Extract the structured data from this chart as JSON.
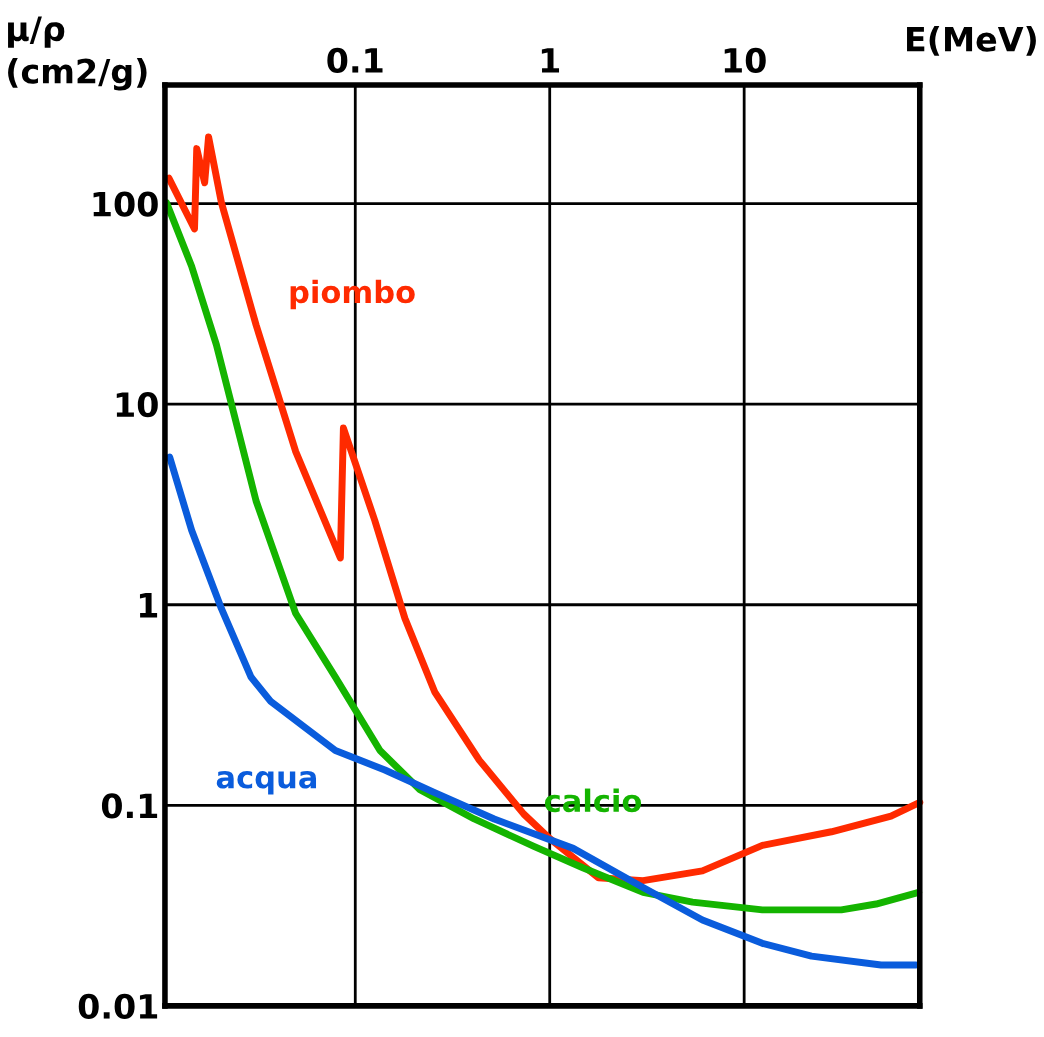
{
  "chart_data": {
    "type": "line",
    "xlabel": "E(MeV)",
    "ylabel": "μ/ρ\n(cm2/g)",
    "log": "xy",
    "grid": true,
    "marker": "none",
    "line_style": "solid",
    "xlim": [
      0.0105,
      80
    ],
    "xticks": [
      0.1,
      1,
      10
    ],
    "ylim": [
      0.01,
      390
    ],
    "yticks": [
      0.01,
      0.1,
      1,
      10,
      100
    ],
    "series": [
      {
        "name": "piombo",
        "color": "#ff2a00",
        "x": [
          0.011,
          0.0149,
          0.0153,
          0.0168,
          0.0176,
          0.0205,
          0.0309,
          0.0494,
          0.0838,
          0.0869,
          0.126,
          0.18,
          0.256,
          0.434,
          0.736,
          1.0,
          1.78,
          3.02,
          6.1,
          12.4,
          28.1,
          56.9,
          80
        ],
        "values": [
          134,
          74.7,
          188,
          127,
          215,
          101,
          24.8,
          5.8,
          1.71,
          7.6,
          2.63,
          0.855,
          0.368,
          0.168,
          0.0904,
          0.0683,
          0.0435,
          0.0421,
          0.0471,
          0.0631,
          0.0738,
          0.0884,
          0.1035
        ]
      },
      {
        "name": "calcio",
        "color": "#14b400",
        "x": [
          0.0107,
          0.0144,
          0.0193,
          0.0309,
          0.0494,
          0.079,
          0.134,
          0.215,
          0.409,
          0.829,
          1.49,
          3.02,
          5.43,
          12.4,
          31.6,
          47.7,
          79
        ],
        "values": [
          101,
          48.7,
          19.8,
          3.29,
          0.904,
          0.436,
          0.1875,
          0.1197,
          0.0855,
          0.0624,
          0.0487,
          0.0368,
          0.0329,
          0.0301,
          0.0301,
          0.0322,
          0.0368
        ]
      },
      {
        "name": "acqua",
        "color": "#0a5cdc",
        "x": [
          0.0111,
          0.0144,
          0.0205,
          0.0291,
          0.0368,
          0.0556,
          0.079,
          0.142,
          0.256,
          0.518,
          1.32,
          3.02,
          6.1,
          12.4,
          22.2,
          50.6,
          76.4
        ],
        "values": [
          5.45,
          2.35,
          0.956,
          0.436,
          0.329,
          0.243,
          0.1875,
          0.15,
          0.1157,
          0.0855,
          0.061,
          0.0389,
          0.0268,
          0.0205,
          0.0177,
          0.016,
          0.016
        ]
      }
    ]
  }
}
